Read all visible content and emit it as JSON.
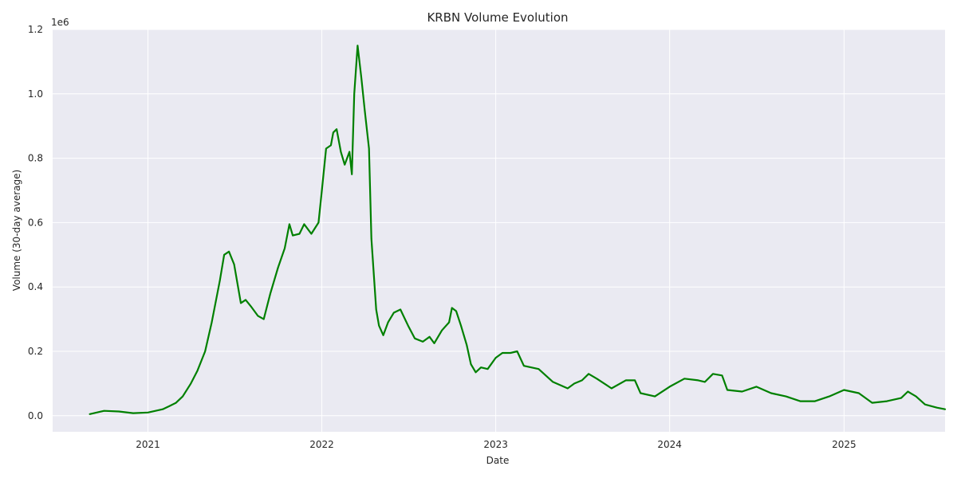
{
  "chart_data": {
    "type": "line",
    "title": "KRBN Volume Evolution",
    "xlabel": "Date",
    "ylabel": "Volume (30-day average)",
    "y_offset_label": "1e6",
    "ylim": [
      -50000,
      1200000
    ],
    "xlim": [
      "2020-06-15",
      "2025-08-01"
    ],
    "grid": true,
    "colors": {
      "line": "#008000",
      "plot_background": "#eaeaf2",
      "grid": "#ffffff"
    },
    "x_ticks": [
      {
        "date": "2021-01-01",
        "label": "2021"
      },
      {
        "date": "2022-01-01",
        "label": "2022"
      },
      {
        "date": "2023-01-01",
        "label": "2023"
      },
      {
        "date": "2024-01-01",
        "label": "2024"
      },
      {
        "date": "2025-01-01",
        "label": "2025"
      }
    ],
    "y_ticks": [
      {
        "value": 0,
        "label": "0.0"
      },
      {
        "value": 200000,
        "label": "0.2"
      },
      {
        "value": 400000,
        "label": "0.4"
      },
      {
        "value": 600000,
        "label": "0.6"
      },
      {
        "value": 800000,
        "label": "0.8"
      },
      {
        "value": 1000000,
        "label": "1.0"
      },
      {
        "value": 1200000,
        "label": "1.2"
      }
    ],
    "series": [
      {
        "points": [
          [
            "2020-09-01",
            5000
          ],
          [
            "2020-10-01",
            15000
          ],
          [
            "2020-11-01",
            13000
          ],
          [
            "2020-12-01",
            8000
          ],
          [
            "2021-01-01",
            10000
          ],
          [
            "2021-02-01",
            20000
          ],
          [
            "2021-02-15",
            30000
          ],
          [
            "2021-03-01",
            40000
          ],
          [
            "2021-03-15",
            60000
          ],
          [
            "2021-04-01",
            100000
          ],
          [
            "2021-04-15",
            140000
          ],
          [
            "2021-05-01",
            200000
          ],
          [
            "2021-05-15",
            290000
          ],
          [
            "2021-06-01",
            420000
          ],
          [
            "2021-06-10",
            500000
          ],
          [
            "2021-06-20",
            510000
          ],
          [
            "2021-07-01",
            470000
          ],
          [
            "2021-07-15",
            350000
          ],
          [
            "2021-07-25",
            360000
          ],
          [
            "2021-08-05",
            340000
          ],
          [
            "2021-08-20",
            310000
          ],
          [
            "2021-09-01",
            300000
          ],
          [
            "2021-09-15",
            380000
          ],
          [
            "2021-10-01",
            460000
          ],
          [
            "2021-10-15",
            520000
          ],
          [
            "2021-10-25",
            595000
          ],
          [
            "2021-11-01",
            560000
          ],
          [
            "2021-11-15",
            565000
          ],
          [
            "2021-11-25",
            595000
          ],
          [
            "2021-12-10",
            565000
          ],
          [
            "2021-12-25",
            600000
          ],
          [
            "2022-01-01",
            700000
          ],
          [
            "2022-01-10",
            830000
          ],
          [
            "2022-01-20",
            840000
          ],
          [
            "2022-01-25",
            880000
          ],
          [
            "2022-02-01",
            890000
          ],
          [
            "2022-02-10",
            820000
          ],
          [
            "2022-02-18",
            780000
          ],
          [
            "2022-02-28",
            820000
          ],
          [
            "2022-03-05",
            750000
          ],
          [
            "2022-03-10",
            1000000
          ],
          [
            "2022-03-17",
            1150000
          ],
          [
            "2022-03-25",
            1050000
          ],
          [
            "2022-04-01",
            950000
          ],
          [
            "2022-04-10",
            830000
          ],
          [
            "2022-04-15",
            550000
          ],
          [
            "2022-04-25",
            330000
          ],
          [
            "2022-05-01",
            280000
          ],
          [
            "2022-05-10",
            250000
          ],
          [
            "2022-05-20",
            290000
          ],
          [
            "2022-06-01",
            320000
          ],
          [
            "2022-06-15",
            330000
          ],
          [
            "2022-07-01",
            280000
          ],
          [
            "2022-07-15",
            240000
          ],
          [
            "2022-08-01",
            230000
          ],
          [
            "2022-08-15",
            245000
          ],
          [
            "2022-08-25",
            225000
          ],
          [
            "2022-09-10",
            265000
          ],
          [
            "2022-09-25",
            290000
          ],
          [
            "2022-10-01",
            335000
          ],
          [
            "2022-10-10",
            325000
          ],
          [
            "2022-10-20",
            280000
          ],
          [
            "2022-11-01",
            220000
          ],
          [
            "2022-11-10",
            160000
          ],
          [
            "2022-11-20",
            135000
          ],
          [
            "2022-12-01",
            150000
          ],
          [
            "2022-12-15",
            145000
          ],
          [
            "2023-01-01",
            180000
          ],
          [
            "2023-01-15",
            195000
          ],
          [
            "2023-02-01",
            195000
          ],
          [
            "2023-02-15",
            200000
          ],
          [
            "2023-03-01",
            155000
          ],
          [
            "2023-04-01",
            145000
          ],
          [
            "2023-05-01",
            105000
          ],
          [
            "2023-06-01",
            85000
          ],
          [
            "2023-06-15",
            100000
          ],
          [
            "2023-07-01",
            110000
          ],
          [
            "2023-07-15",
            130000
          ],
          [
            "2023-08-01",
            115000
          ],
          [
            "2023-09-01",
            85000
          ],
          [
            "2023-10-01",
            110000
          ],
          [
            "2023-10-20",
            110000
          ],
          [
            "2023-11-01",
            70000
          ],
          [
            "2023-12-01",
            60000
          ],
          [
            "2024-01-01",
            90000
          ],
          [
            "2024-02-01",
            115000
          ],
          [
            "2024-03-01",
            110000
          ],
          [
            "2024-03-15",
            105000
          ],
          [
            "2024-04-01",
            130000
          ],
          [
            "2024-04-20",
            125000
          ],
          [
            "2024-05-01",
            80000
          ],
          [
            "2024-06-01",
            75000
          ],
          [
            "2024-07-01",
            90000
          ],
          [
            "2024-08-01",
            70000
          ],
          [
            "2024-09-01",
            60000
          ],
          [
            "2024-10-01",
            45000
          ],
          [
            "2024-11-01",
            45000
          ],
          [
            "2024-12-01",
            60000
          ],
          [
            "2025-01-01",
            80000
          ],
          [
            "2025-02-01",
            70000
          ],
          [
            "2025-03-01",
            40000
          ],
          [
            "2025-04-01",
            45000
          ],
          [
            "2025-05-01",
            55000
          ],
          [
            "2025-05-15",
            75000
          ],
          [
            "2025-06-01",
            60000
          ],
          [
            "2025-06-20",
            35000
          ],
          [
            "2025-07-15",
            25000
          ],
          [
            "2025-08-01",
            20000
          ]
        ]
      }
    ]
  }
}
